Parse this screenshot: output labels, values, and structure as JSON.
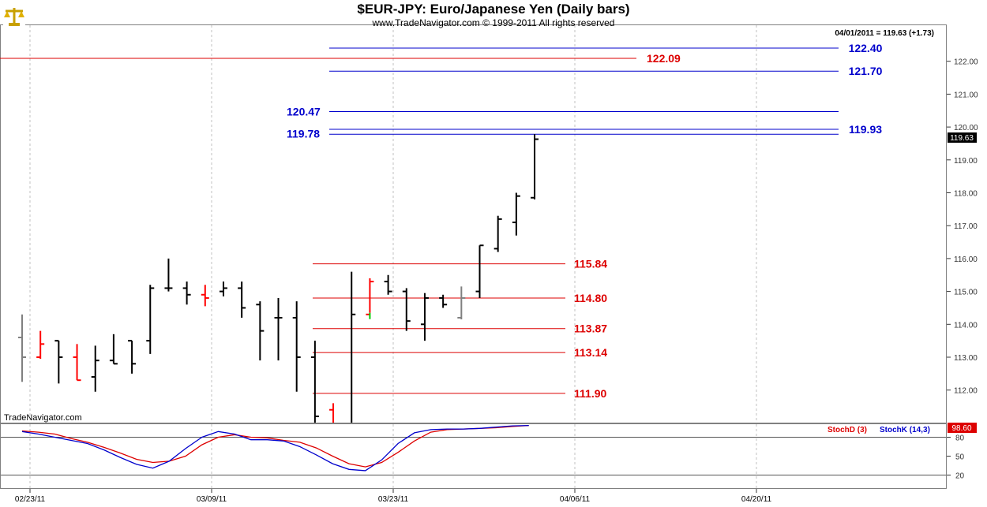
{
  "header": {
    "title": "$EUR-JPY:  Euro/Japanese Yen  (Daily bars)",
    "subtitle": "www.TradeNavigator.com © 1999-2011 All rights reserved",
    "last_info": "04/01/2011 = 119.63 (+1.73)",
    "last_price_badge": "119.63",
    "watermark": "TradeNavigator.com",
    "logo": "scales-icon"
  },
  "stoch_panel": {
    "stochd_label": "StochD (3)",
    "stochk_label": "StochK (14,3)",
    "value_badge": "98.60",
    "y_ticks": [
      "80",
      "50",
      "20"
    ]
  },
  "colors": {
    "up_bar": "#000000",
    "down_bar": "#ff0000",
    "neutral_bar": "#808080",
    "blue_level": "#0000cc",
    "red_level": "#dd0000",
    "stochd": "#dd0000",
    "stochk": "#0000cc"
  },
  "chart_data": {
    "type": "ohlc",
    "y_ticks": [
      "112.00",
      "113.00",
      "114.00",
      "115.00",
      "116.00",
      "117.00",
      "118.00",
      "119.00",
      "120.00",
      "121.00",
      "122.00"
    ],
    "x_ticks": [
      "02/23/11",
      "03/09/11",
      "03/23/11",
      "04/06/11",
      "04/20/11"
    ],
    "bars": [
      {
        "o": 113.6,
        "h": 114.3,
        "l": 112.25,
        "c": 113.0,
        "color": "neutral"
      },
      {
        "o": 113.0,
        "h": 113.8,
        "l": 112.95,
        "c": 113.4,
        "color": "down"
      },
      {
        "o": 113.5,
        "h": 113.5,
        "l": 112.2,
        "c": 113.0,
        "color": "up"
      },
      {
        "o": 113.0,
        "h": 113.4,
        "l": 112.3,
        "c": 112.3,
        "color": "down"
      },
      {
        "o": 112.4,
        "h": 113.35,
        "l": 111.95,
        "c": 112.9,
        "color": "up"
      },
      {
        "o": 112.9,
        "h": 113.7,
        "l": 112.8,
        "c": 112.8,
        "color": "up"
      },
      {
        "o": 113.5,
        "h": 113.5,
        "l": 112.5,
        "c": 112.8,
        "color": "up"
      },
      {
        "o": 113.5,
        "h": 115.2,
        "l": 113.1,
        "c": 115.1,
        "color": "up"
      },
      {
        "o": 115.1,
        "h": 116.0,
        "l": 115.0,
        "c": 115.1,
        "color": "up"
      },
      {
        "o": 115.1,
        "h": 115.3,
        "l": 114.6,
        "c": 114.9,
        "color": "up"
      },
      {
        "o": 114.9,
        "h": 115.2,
        "l": 114.55,
        "c": 114.8,
        "color": "down"
      },
      {
        "o": 115.0,
        "h": 115.3,
        "l": 114.85,
        "c": 115.1,
        "color": "up"
      },
      {
        "o": 115.1,
        "h": 115.3,
        "l": 114.2,
        "c": 114.5,
        "color": "up"
      },
      {
        "o": 114.6,
        "h": 114.7,
        "l": 112.9,
        "c": 113.8,
        "color": "up"
      },
      {
        "o": 114.2,
        "h": 114.8,
        "l": 112.9,
        "c": 114.2,
        "color": "up"
      },
      {
        "o": 114.2,
        "h": 114.7,
        "l": 111.95,
        "c": 113.0,
        "color": "up"
      },
      {
        "o": 113.0,
        "h": 113.5,
        "l": 110.5,
        "c": 111.2,
        "color": "up"
      },
      {
        "o": 111.4,
        "h": 111.6,
        "l": 110.5,
        "c": 110.9,
        "color": "down"
      },
      {
        "o": 110.6,
        "h": 115.6,
        "l": 110.4,
        "c": 114.3,
        "color": "up"
      },
      {
        "o": 114.3,
        "h": 115.4,
        "l": 114.35,
        "c": 115.3,
        "color": "down"
      },
      {
        "o": 115.3,
        "h": 115.5,
        "l": 114.9,
        "c": 115.0,
        "color": "up"
      },
      {
        "o": 115.0,
        "h": 115.1,
        "l": 113.8,
        "c": 114.1,
        "color": "up"
      },
      {
        "o": 114.0,
        "h": 114.95,
        "l": 113.5,
        "c": 114.8,
        "color": "up"
      },
      {
        "o": 114.8,
        "h": 114.9,
        "l": 114.5,
        "c": 114.6,
        "color": "up"
      },
      {
        "o": 114.2,
        "h": 115.15,
        "l": 114.15,
        "c": 114.8,
        "color": "neutral"
      },
      {
        "o": 115.0,
        "h": 116.4,
        "l": 114.8,
        "c": 116.4,
        "color": "up"
      },
      {
        "o": 116.3,
        "h": 117.3,
        "l": 116.2,
        "c": 117.2,
        "color": "up"
      },
      {
        "o": 117.1,
        "h": 118.0,
        "l": 116.7,
        "c": 117.9,
        "color": "up"
      },
      {
        "o": 117.85,
        "h": 119.78,
        "l": 117.8,
        "c": 119.63,
        "color": "up"
      }
    ],
    "blue_levels": [
      "122.40",
      "121.70",
      "120.47",
      "119.93",
      "119.78"
    ],
    "red_levels": [
      "122.09",
      "115.84",
      "114.80",
      "113.87",
      "113.14",
      "111.90"
    ],
    "stoch_k": [
      89,
      85,
      80,
      75,
      70,
      60,
      48,
      37,
      31,
      42,
      62,
      80,
      89,
      85,
      76,
      76,
      74,
      65,
      52,
      38,
      29,
      27,
      44,
      70,
      87,
      92,
      93,
      93,
      94,
      96,
      98,
      98.6
    ],
    "stoch_d": [
      90,
      88,
      85,
      78,
      72,
      64,
      55,
      45,
      40,
      42,
      50,
      68,
      80,
      84,
      80,
      79,
      75,
      72,
      63,
      50,
      38,
      33,
      40,
      56,
      74,
      88,
      92,
      93,
      94,
      95,
      97,
      98.6
    ]
  }
}
